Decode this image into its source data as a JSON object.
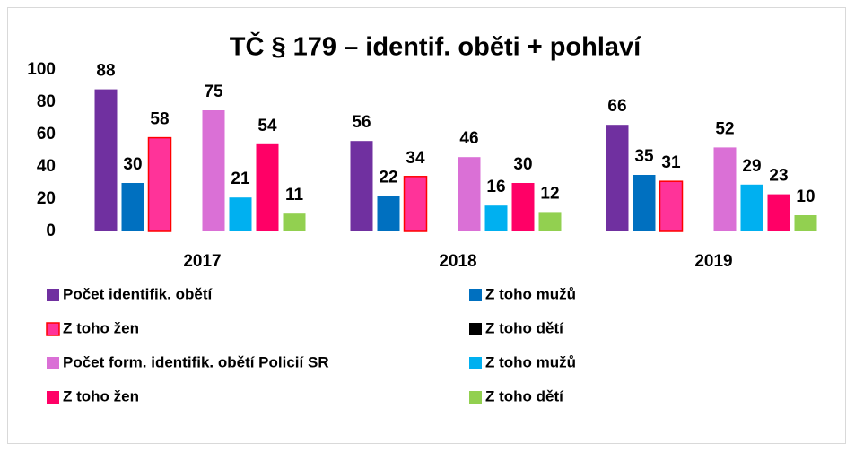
{
  "chart_data": {
    "type": "bar",
    "title": "TČ § 179 – identif. oběti + pohlaví",
    "categories": [
      "2017",
      "2018",
      "2019"
    ],
    "series": [
      {
        "name": "Počet identifik. obětí",
        "color": "#7030a0",
        "values": [
          88,
          56,
          66
        ]
      },
      {
        "name": "Z toho mužů",
        "color": "#0070c0",
        "values": [
          30,
          22,
          35
        ]
      },
      {
        "name": "Z toho žen",
        "color": "#ff3399",
        "edgecolor": "#ff0000",
        "values": [
          58,
          34,
          31
        ]
      },
      {
        "name": "Z toho dětí",
        "color": "#000000",
        "values": [
          null,
          null,
          null
        ]
      },
      {
        "name": "Počet form. identifik. obětí Policií SR",
        "color": "#da70d6",
        "values": [
          75,
          46,
          52
        ]
      },
      {
        "name": "Z toho mužů",
        "color": "#00b0f0",
        "values": [
          21,
          16,
          29
        ]
      },
      {
        "name": "Z toho žen",
        "color": "#ff0066",
        "values": [
          54,
          30,
          23
        ]
      },
      {
        "name": "Z toho dětí",
        "color": "#92d050",
        "values": [
          11,
          12,
          10
        ]
      }
    ],
    "ylim": [
      0,
      100
    ],
    "yticks": [
      0,
      20,
      40,
      60,
      80,
      100
    ],
    "grid": false
  }
}
